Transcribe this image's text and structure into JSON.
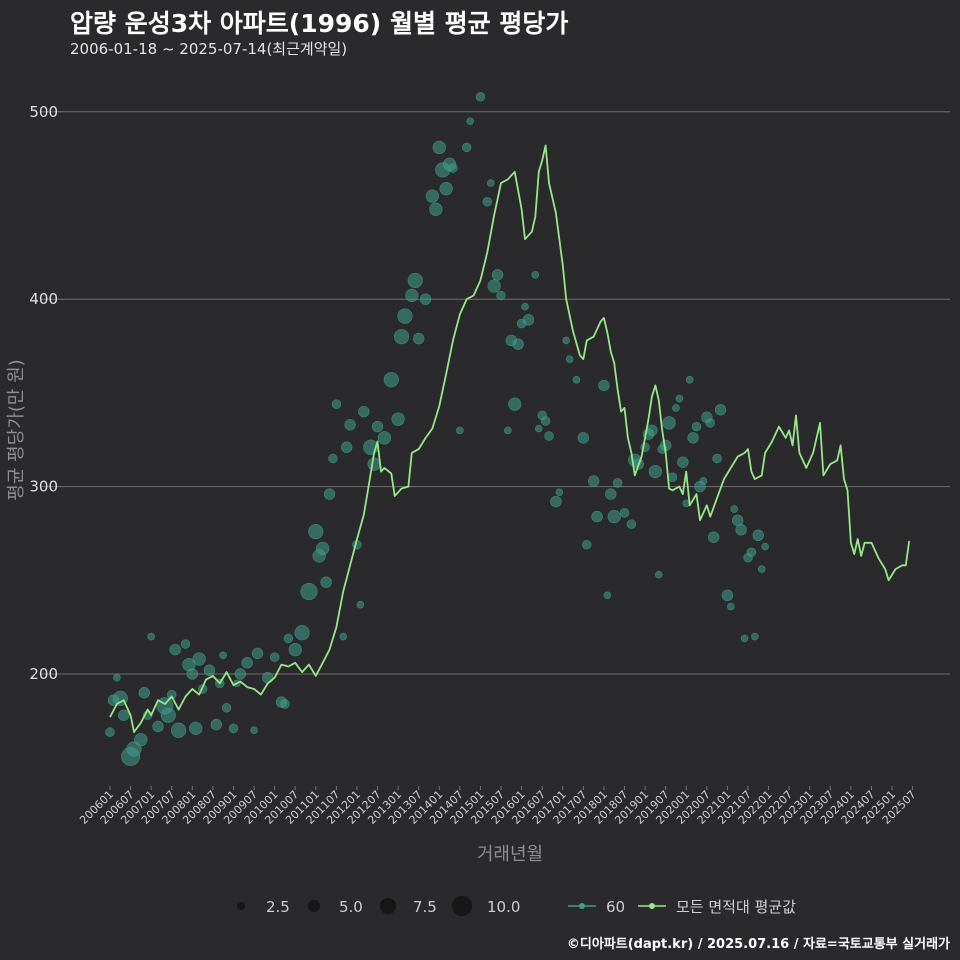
{
  "header": {
    "title": "압량 운성3차 아파트(1996) 월별 평균 평당가",
    "subtitle": "2006-01-18 ~ 2025-07-14(최근계약일)"
  },
  "footer": {
    "credit": "©디아파트(dapt.kr) / 2025.07.16 / 자료=국토교통부 실거래가"
  },
  "colors": {
    "background": "#2a2a2c",
    "line": "#98e68a",
    "point": "#3f9e8c",
    "grid": "#6e6e70",
    "size_legend": "#111111"
  },
  "chart_data": {
    "type": "line",
    "title": "압량 운성3차 아파트(1996) 월별 평균 평당가",
    "xlabel": "거래년월",
    "ylabel": "평균 평당가(만 원)",
    "ylim": [
      140,
      520
    ],
    "yticks": [
      200,
      300,
      400,
      500
    ],
    "x_tick_labels": [
      "200601",
      "200607",
      "200701",
      "200707",
      "200801",
      "200807",
      "200901",
      "200907",
      "201001",
      "201007",
      "201101",
      "201107",
      "201201",
      "201207",
      "201301",
      "201307",
      "201401",
      "201407",
      "201501",
      "201507",
      "201601",
      "201607",
      "201701",
      "201707",
      "201801",
      "201807",
      "201901",
      "201907",
      "202001",
      "202007",
      "202101",
      "202107",
      "202201",
      "202207",
      "202301",
      "202307",
      "202401",
      "202407",
      "202501",
      "202507"
    ],
    "x_start": "2006-01",
    "x_end": "2025-07",
    "line_anchors": [
      {
        "t": 0,
        "v": 177
      },
      {
        "t": 2,
        "v": 184
      },
      {
        "t": 4,
        "v": 186
      },
      {
        "t": 6,
        "v": 178
      },
      {
        "t": 7,
        "v": 169
      },
      {
        "t": 9,
        "v": 174
      },
      {
        "t": 11,
        "v": 181
      },
      {
        "t": 12,
        "v": 178
      },
      {
        "t": 14,
        "v": 186
      },
      {
        "t": 16,
        "v": 184
      },
      {
        "t": 18,
        "v": 188
      },
      {
        "t": 20,
        "v": 181
      },
      {
        "t": 22,
        "v": 188
      },
      {
        "t": 24,
        "v": 192
      },
      {
        "t": 26,
        "v": 189
      },
      {
        "t": 28,
        "v": 197
      },
      {
        "t": 30,
        "v": 199
      },
      {
        "t": 32,
        "v": 195
      },
      {
        "t": 34,
        "v": 201
      },
      {
        "t": 36,
        "v": 194
      },
      {
        "t": 38,
        "v": 196
      },
      {
        "t": 40,
        "v": 193
      },
      {
        "t": 42,
        "v": 192
      },
      {
        "t": 44,
        "v": 189
      },
      {
        "t": 46,
        "v": 195
      },
      {
        "t": 48,
        "v": 198
      },
      {
        "t": 50,
        "v": 205
      },
      {
        "t": 52,
        "v": 204
      },
      {
        "t": 54,
        "v": 206
      },
      {
        "t": 56,
        "v": 201
      },
      {
        "t": 58,
        "v": 205
      },
      {
        "t": 60,
        "v": 199
      },
      {
        "t": 62,
        "v": 206
      },
      {
        "t": 64,
        "v": 213
      },
      {
        "t": 66,
        "v": 225
      },
      {
        "t": 68,
        "v": 244
      },
      {
        "t": 70,
        "v": 258
      },
      {
        "t": 72,
        "v": 272
      },
      {
        "t": 74,
        "v": 285
      },
      {
        "t": 75,
        "v": 296
      },
      {
        "t": 77,
        "v": 318
      },
      {
        "t": 78,
        "v": 324
      },
      {
        "t": 79,
        "v": 308
      },
      {
        "t": 80,
        "v": 310
      },
      {
        "t": 82,
        "v": 307
      },
      {
        "t": 83,
        "v": 295
      },
      {
        "t": 85,
        "v": 299
      },
      {
        "t": 87,
        "v": 300
      },
      {
        "t": 88,
        "v": 318
      },
      {
        "t": 90,
        "v": 320
      },
      {
        "t": 92,
        "v": 326
      },
      {
        "t": 94,
        "v": 331
      },
      {
        "t": 96,
        "v": 343
      },
      {
        "t": 98,
        "v": 360
      },
      {
        "t": 100,
        "v": 378
      },
      {
        "t": 102,
        "v": 392
      },
      {
        "t": 104,
        "v": 400
      },
      {
        "t": 106,
        "v": 402
      },
      {
        "t": 108,
        "v": 410
      },
      {
        "t": 110,
        "v": 425
      },
      {
        "t": 112,
        "v": 445
      },
      {
        "t": 114,
        "v": 462
      },
      {
        "t": 116,
        "v": 464
      },
      {
        "t": 118,
        "v": 468
      },
      {
        "t": 120,
        "v": 448
      },
      {
        "t": 121,
        "v": 432
      },
      {
        "t": 123,
        "v": 436
      },
      {
        "t": 124,
        "v": 444
      },
      {
        "t": 125,
        "v": 468
      },
      {
        "t": 126,
        "v": 474
      },
      {
        "t": 127,
        "v": 482
      },
      {
        "t": 128,
        "v": 462
      },
      {
        "t": 130,
        "v": 446
      },
      {
        "t": 132,
        "v": 418
      },
      {
        "t": 133,
        "v": 400
      },
      {
        "t": 135,
        "v": 383
      },
      {
        "t": 137,
        "v": 370
      },
      {
        "t": 138,
        "v": 368
      },
      {
        "t": 139,
        "v": 378
      },
      {
        "t": 141,
        "v": 380
      },
      {
        "t": 143,
        "v": 388
      },
      {
        "t": 144,
        "v": 390
      },
      {
        "t": 145,
        "v": 382
      },
      {
        "t": 146,
        "v": 372
      },
      {
        "t": 147,
        "v": 366
      },
      {
        "t": 148,
        "v": 352
      },
      {
        "t": 149,
        "v": 340
      },
      {
        "t": 150,
        "v": 342
      },
      {
        "t": 151,
        "v": 326
      },
      {
        "t": 152,
        "v": 318
      },
      {
        "t": 153,
        "v": 306
      },
      {
        "t": 155,
        "v": 316
      },
      {
        "t": 157,
        "v": 336
      },
      {
        "t": 158,
        "v": 348
      },
      {
        "t": 159,
        "v": 354
      },
      {
        "t": 160,
        "v": 346
      },
      {
        "t": 161,
        "v": 330
      },
      {
        "t": 162,
        "v": 318
      },
      {
        "t": 163,
        "v": 299
      },
      {
        "t": 164,
        "v": 298
      },
      {
        "t": 166,
        "v": 300
      },
      {
        "t": 167,
        "v": 296
      },
      {
        "t": 168,
        "v": 308
      },
      {
        "t": 169,
        "v": 290
      },
      {
        "t": 171,
        "v": 296
      },
      {
        "t": 172,
        "v": 282
      },
      {
        "t": 174,
        "v": 290
      },
      {
        "t": 175,
        "v": 284
      },
      {
        "t": 177,
        "v": 294
      },
      {
        "t": 179,
        "v": 304
      },
      {
        "t": 181,
        "v": 310
      },
      {
        "t": 183,
        "v": 316
      },
      {
        "t": 185,
        "v": 318
      },
      {
        "t": 186,
        "v": 320
      },
      {
        "t": 187,
        "v": 308
      },
      {
        "t": 188,
        "v": 304
      },
      {
        "t": 190,
        "v": 306
      },
      {
        "t": 191,
        "v": 318
      },
      {
        "t": 193,
        "v": 324
      },
      {
        "t": 195,
        "v": 332
      },
      {
        "t": 197,
        "v": 326
      },
      {
        "t": 198,
        "v": 330
      },
      {
        "t": 199,
        "v": 322
      },
      {
        "t": 200,
        "v": 338
      },
      {
        "t": 201,
        "v": 318
      },
      {
        "t": 203,
        "v": 310
      },
      {
        "t": 205,
        "v": 318
      },
      {
        "t": 207,
        "v": 334
      },
      {
        "t": 208,
        "v": 306
      },
      {
        "t": 210,
        "v": 312
      },
      {
        "t": 212,
        "v": 314
      },
      {
        "t": 213,
        "v": 322
      },
      {
        "t": 214,
        "v": 304
      },
      {
        "t": 215,
        "v": 298
      },
      {
        "t": 216,
        "v": 270
      },
      {
        "t": 217,
        "v": 264
      },
      {
        "t": 218,
        "v": 272
      },
      {
        "t": 219,
        "v": 263
      },
      {
        "t": 220,
        "v": 270
      },
      {
        "t": 222,
        "v": 270
      },
      {
        "t": 224,
        "v": 262
      },
      {
        "t": 226,
        "v": 256
      },
      {
        "t": 227,
        "v": 250
      },
      {
        "t": 229,
        "v": 256
      },
      {
        "t": 231,
        "v": 258
      },
      {
        "t": 232,
        "v": 258
      },
      {
        "t": 233,
        "v": 271
      }
    ],
    "points": [
      {
        "t": 0,
        "v": 169,
        "n": 3
      },
      {
        "t": 1,
        "v": 186,
        "n": 4
      },
      {
        "t": 2,
        "v": 198,
        "n": 2
      },
      {
        "t": 3,
        "v": 187,
        "n": 6
      },
      {
        "t": 4,
        "v": 178,
        "n": 4
      },
      {
        "t": 6,
        "v": 156,
        "n": 8
      },
      {
        "t": 7,
        "v": 160,
        "n": 6
      },
      {
        "t": 9,
        "v": 165,
        "n": 5
      },
      {
        "t": 10,
        "v": 190,
        "n": 4
      },
      {
        "t": 11,
        "v": 178,
        "n": 3
      },
      {
        "t": 12,
        "v": 220,
        "n": 2
      },
      {
        "t": 14,
        "v": 172,
        "n": 4
      },
      {
        "t": 16,
        "v": 183,
        "n": 7
      },
      {
        "t": 17,
        "v": 178,
        "n": 6
      },
      {
        "t": 18,
        "v": 189,
        "n": 3
      },
      {
        "t": 19,
        "v": 213,
        "n": 4
      },
      {
        "t": 20,
        "v": 170,
        "n": 6
      },
      {
        "t": 22,
        "v": 216,
        "n": 3
      },
      {
        "t": 23,
        "v": 205,
        "n": 5
      },
      {
        "t": 24,
        "v": 200,
        "n": 4
      },
      {
        "t": 25,
        "v": 171,
        "n": 5
      },
      {
        "t": 26,
        "v": 208,
        "n": 5
      },
      {
        "t": 27,
        "v": 192,
        "n": 3
      },
      {
        "t": 29,
        "v": 202,
        "n": 4
      },
      {
        "t": 31,
        "v": 173,
        "n": 4
      },
      {
        "t": 32,
        "v": 195,
        "n": 3
      },
      {
        "t": 33,
        "v": 210,
        "n": 2
      },
      {
        "t": 34,
        "v": 182,
        "n": 3
      },
      {
        "t": 36,
        "v": 171,
        "n": 3
      },
      {
        "t": 37,
        "v": 195,
        "n": 2
      },
      {
        "t": 38,
        "v": 200,
        "n": 4
      },
      {
        "t": 40,
        "v": 206,
        "n": 4
      },
      {
        "t": 42,
        "v": 170,
        "n": 2
      },
      {
        "t": 43,
        "v": 211,
        "n": 4
      },
      {
        "t": 46,
        "v": 198,
        "n": 4
      },
      {
        "t": 48,
        "v": 209,
        "n": 3
      },
      {
        "t": 50,
        "v": 185,
        "n": 4
      },
      {
        "t": 51,
        "v": 184,
        "n": 3
      },
      {
        "t": 52,
        "v": 219,
        "n": 3
      },
      {
        "t": 54,
        "v": 213,
        "n": 5
      },
      {
        "t": 56,
        "v": 222,
        "n": 6
      },
      {
        "t": 58,
        "v": 244,
        "n": 7
      },
      {
        "t": 60,
        "v": 276,
        "n": 6
      },
      {
        "t": 61,
        "v": 263,
        "n": 5
      },
      {
        "t": 62,
        "v": 267,
        "n": 5
      },
      {
        "t": 63,
        "v": 249,
        "n": 4
      },
      {
        "t": 64,
        "v": 296,
        "n": 4
      },
      {
        "t": 65,
        "v": 315,
        "n": 3
      },
      {
        "t": 66,
        "v": 344,
        "n": 3
      },
      {
        "t": 68,
        "v": 220,
        "n": 2
      },
      {
        "t": 69,
        "v": 321,
        "n": 4
      },
      {
        "t": 70,
        "v": 333,
        "n": 4
      },
      {
        "t": 72,
        "v": 269,
        "n": 3
      },
      {
        "t": 73,
        "v": 237,
        "n": 2
      },
      {
        "t": 74,
        "v": 340,
        "n": 4
      },
      {
        "t": 76,
        "v": 321,
        "n": 6
      },
      {
        "t": 77,
        "v": 312,
        "n": 5
      },
      {
        "t": 78,
        "v": 332,
        "n": 4
      },
      {
        "t": 80,
        "v": 326,
        "n": 5
      },
      {
        "t": 82,
        "v": 357,
        "n": 6
      },
      {
        "t": 84,
        "v": 336,
        "n": 5
      },
      {
        "t": 85,
        "v": 380,
        "n": 6
      },
      {
        "t": 86,
        "v": 391,
        "n": 6
      },
      {
        "t": 88,
        "v": 402,
        "n": 5
      },
      {
        "t": 89,
        "v": 410,
        "n": 6
      },
      {
        "t": 90,
        "v": 379,
        "n": 4
      },
      {
        "t": 92,
        "v": 400,
        "n": 4
      },
      {
        "t": 94,
        "v": 455,
        "n": 5
      },
      {
        "t": 95,
        "v": 448,
        "n": 5
      },
      {
        "t": 96,
        "v": 481,
        "n": 5
      },
      {
        "t": 97,
        "v": 469,
        "n": 6
      },
      {
        "t": 98,
        "v": 459,
        "n": 5
      },
      {
        "t": 99,
        "v": 472,
        "n": 5
      },
      {
        "t": 100,
        "v": 470,
        "n": 3
      },
      {
        "t": 102,
        "v": 330,
        "n": 2
      },
      {
        "t": 104,
        "v": 481,
        "n": 3
      },
      {
        "t": 105,
        "v": 495,
        "n": 2
      },
      {
        "t": 108,
        "v": 508,
        "n": 3
      },
      {
        "t": 110,
        "v": 452,
        "n": 3
      },
      {
        "t": 111,
        "v": 462,
        "n": 2
      },
      {
        "t": 112,
        "v": 407,
        "n": 5
      },
      {
        "t": 113,
        "v": 413,
        "n": 4
      },
      {
        "t": 114,
        "v": 402,
        "n": 3
      },
      {
        "t": 116,
        "v": 330,
        "n": 2
      },
      {
        "t": 117,
        "v": 378,
        "n": 4
      },
      {
        "t": 118,
        "v": 344,
        "n": 5
      },
      {
        "t": 119,
        "v": 376,
        "n": 4
      },
      {
        "t": 120,
        "v": 387,
        "n": 3
      },
      {
        "t": 121,
        "v": 396,
        "n": 2
      },
      {
        "t": 122,
        "v": 389,
        "n": 4
      },
      {
        "t": 124,
        "v": 413,
        "n": 2
      },
      {
        "t": 125,
        "v": 331,
        "n": 2
      },
      {
        "t": 126,
        "v": 338,
        "n": 3
      },
      {
        "t": 127,
        "v": 335,
        "n": 3
      },
      {
        "t": 128,
        "v": 327,
        "n": 3
      },
      {
        "t": 130,
        "v": 292,
        "n": 4
      },
      {
        "t": 131,
        "v": 297,
        "n": 2
      },
      {
        "t": 133,
        "v": 378,
        "n": 2
      },
      {
        "t": 134,
        "v": 368,
        "n": 2
      },
      {
        "t": 136,
        "v": 357,
        "n": 2
      },
      {
        "t": 138,
        "v": 326,
        "n": 4
      },
      {
        "t": 139,
        "v": 269,
        "n": 3
      },
      {
        "t": 141,
        "v": 303,
        "n": 4
      },
      {
        "t": 142,
        "v": 284,
        "n": 4
      },
      {
        "t": 144,
        "v": 354,
        "n": 4
      },
      {
        "t": 145,
        "v": 242,
        "n": 2
      },
      {
        "t": 146,
        "v": 296,
        "n": 4
      },
      {
        "t": 147,
        "v": 284,
        "n": 5
      },
      {
        "t": 148,
        "v": 302,
        "n": 3
      },
      {
        "t": 150,
        "v": 286,
        "n": 3
      },
      {
        "t": 152,
        "v": 280,
        "n": 3
      },
      {
        "t": 153,
        "v": 314,
        "n": 5
      },
      {
        "t": 154,
        "v": 312,
        "n": 4
      },
      {
        "t": 156,
        "v": 321,
        "n": 3
      },
      {
        "t": 157,
        "v": 328,
        "n": 4
      },
      {
        "t": 158,
        "v": 330,
        "n": 4
      },
      {
        "t": 159,
        "v": 308,
        "n": 5
      },
      {
        "t": 160,
        "v": 253,
        "n": 2
      },
      {
        "t": 161,
        "v": 320,
        "n": 3
      },
      {
        "t": 162,
        "v": 322,
        "n": 4
      },
      {
        "t": 163,
        "v": 334,
        "n": 5
      },
      {
        "t": 164,
        "v": 305,
        "n": 3
      },
      {
        "t": 165,
        "v": 342,
        "n": 2
      },
      {
        "t": 166,
        "v": 347,
        "n": 2
      },
      {
        "t": 167,
        "v": 313,
        "n": 4
      },
      {
        "t": 168,
        "v": 291,
        "n": 2
      },
      {
        "t": 169,
        "v": 357,
        "n": 2
      },
      {
        "t": 170,
        "v": 326,
        "n": 4
      },
      {
        "t": 171,
        "v": 332,
        "n": 3
      },
      {
        "t": 172,
        "v": 300,
        "n": 4
      },
      {
        "t": 173,
        "v": 303,
        "n": 2
      },
      {
        "t": 174,
        "v": 337,
        "n": 4
      },
      {
        "t": 175,
        "v": 334,
        "n": 3
      },
      {
        "t": 176,
        "v": 273,
        "n": 4
      },
      {
        "t": 177,
        "v": 315,
        "n": 3
      },
      {
        "t": 178,
        "v": 341,
        "n": 4
      },
      {
        "t": 180,
        "v": 242,
        "n": 4
      },
      {
        "t": 181,
        "v": 236,
        "n": 2
      },
      {
        "t": 182,
        "v": 288,
        "n": 2
      },
      {
        "t": 183,
        "v": 282,
        "n": 4
      },
      {
        "t": 184,
        "v": 277,
        "n": 4
      },
      {
        "t": 185,
        "v": 219,
        "n": 2
      },
      {
        "t": 186,
        "v": 262,
        "n": 3
      },
      {
        "t": 187,
        "v": 265,
        "n": 3
      },
      {
        "t": 188,
        "v": 220,
        "n": 2
      },
      {
        "t": 189,
        "v": 274,
        "n": 4
      },
      {
        "t": 190,
        "v": 256,
        "n": 2
      },
      {
        "t": 191,
        "v": 268,
        "n": 2
      }
    ],
    "legend": {
      "size_title_values": [
        "2.5",
        "5.0",
        "7.5",
        "10.0"
      ],
      "series": [
        {
          "name": "60"
        },
        {
          "name": "모든 면적대 평균값"
        }
      ]
    }
  }
}
